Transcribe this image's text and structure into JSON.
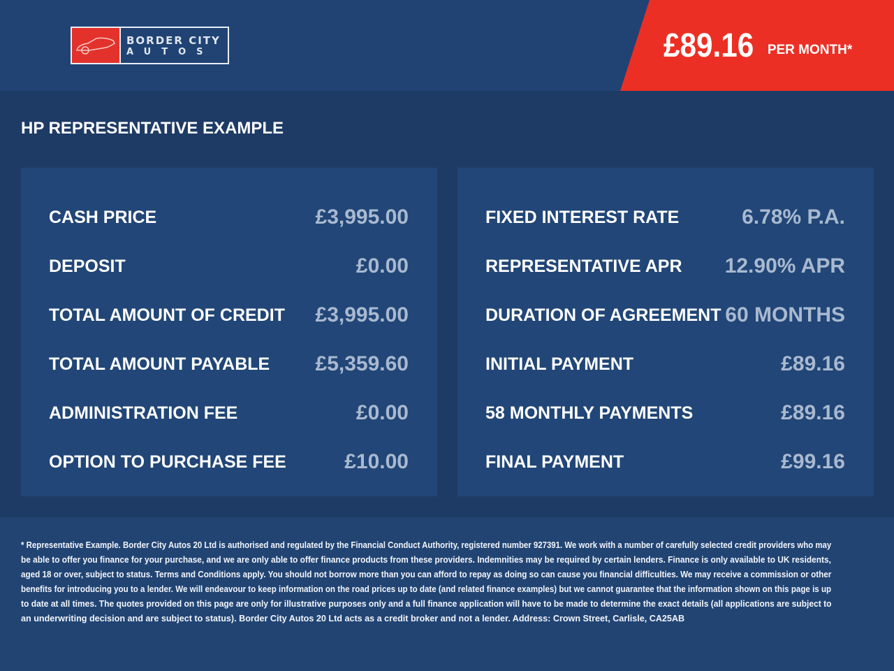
{
  "logo": {
    "line1": "BORDER CITY",
    "line2": "AUTOS"
  },
  "badge": {
    "amount": "£89.16",
    "label": "PER MONTH*"
  },
  "title": "HP REPRESENTATIVE EXAMPLE",
  "left": [
    {
      "label": "CASH PRICE",
      "value": "£3,995.00"
    },
    {
      "label": "DEPOSIT",
      "value": "£0.00"
    },
    {
      "label": "TOTAL AMOUNT OF CREDIT",
      "value": "£3,995.00"
    },
    {
      "label": "TOTAL AMOUNT PAYABLE",
      "value": "£5,359.60"
    },
    {
      "label": "ADMINISTRATION FEE",
      "value": "£0.00"
    },
    {
      "label": "OPTION TO PURCHASE FEE",
      "value": "£10.00"
    }
  ],
  "right": [
    {
      "label": "FIXED INTEREST RATE",
      "value": "6.78% P.A."
    },
    {
      "label": "REPRESENTATIVE APR",
      "value": "12.90% APR"
    },
    {
      "label": "DURATION OF AGREEMENT",
      "value": "60 MONTHS"
    },
    {
      "label": "INITIAL PAYMENT",
      "value": "£89.16"
    },
    {
      "label": "58 MONTHLY PAYMENTS",
      "value": "£89.16"
    },
    {
      "label": "FINAL PAYMENT",
      "value": "£99.16"
    }
  ],
  "disclaimer": [
    "* Representative Example. Border City Autos 20 Ltd is authorised and regulated by the Financial Conduct Authority, registered number 927391. We work with a number of carefully selected credit providers who may",
    "be able to offer you finance for your purchase, and we are only able to offer finance products from these providers. Indemnities may be required by certain lenders. Finance is only available to UK residents,",
    "aged 18 or over, subject to status. Terms and Conditions apply. You should not borrow more than you can afford to repay as doing so can cause you financial difficulties. We may receive a commission or other",
    "benefits for introducing you to a lender. We will endeavour to keep information on the road prices up to date (and related finance examples) but we cannot guarantee that the information shown on this page is up",
    "to date at all times. The quotes provided on this page are only for illustrative purposes only and a full finance application will have to be made to determine the exact details (all applications are subject to",
    "an underwriting decision and are subject to status). Border City Autos 20 Ltd acts as a credit broker and not a lender. Address: Crown Street, Carlisle, CA25AB"
  ],
  "colors": {
    "header": "#204374",
    "background": "#1e3b65",
    "panel": "#214677",
    "accent": "#ec2f24",
    "value": "#a9b9d0"
  }
}
